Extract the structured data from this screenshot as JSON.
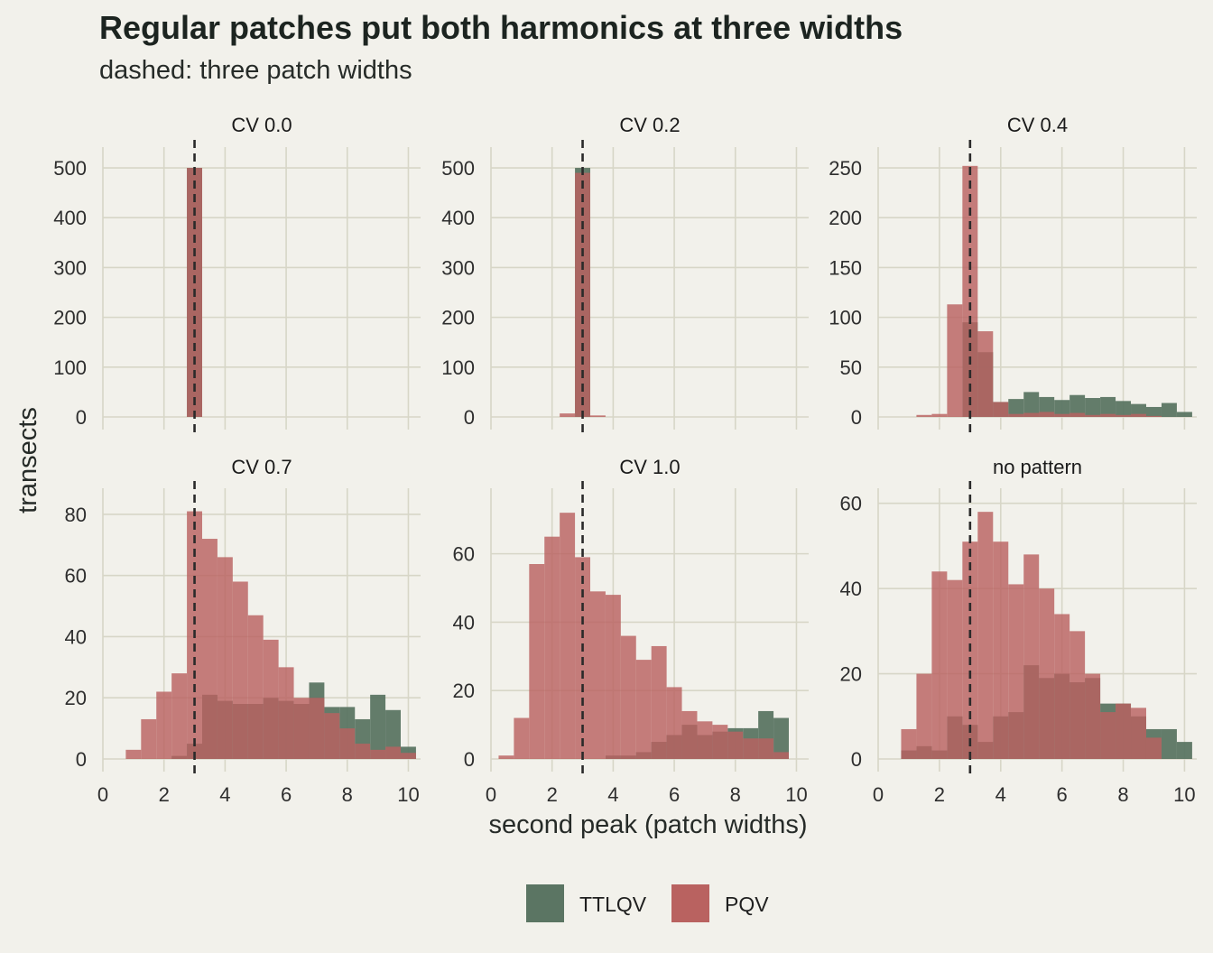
{
  "chart_data": {
    "type": "bar",
    "title": "Regular patches put both harmonics at three widths",
    "subtitle": "dashed: three patch widths",
    "xlabel": "second peak (patch widths)",
    "ylabel": "transects",
    "xlim": [
      0,
      10.4
    ],
    "x_ticks": [
      0,
      2,
      4,
      6,
      8,
      10
    ],
    "reference_line_x": 3,
    "bin_width": 0.5,
    "bin_starts": [
      0.25,
      0.75,
      1.25,
      1.75,
      2.25,
      2.75,
      3.25,
      3.75,
      4.25,
      4.75,
      5.25,
      5.75,
      6.25,
      6.75,
      7.25,
      7.75,
      8.25,
      8.75,
      9.25,
      9.75
    ],
    "legend": [
      "TTLQV",
      "PQV"
    ],
    "colors": {
      "TTLQV": "#5b7563",
      "PQV": "#b96260",
      "reference": "#2a2a2a",
      "grid": "#d7d6c7",
      "background": "#f2f1eb"
    },
    "panels": [
      {
        "label": "CV 0.0",
        "ylim": [
          0,
          520
        ],
        "y_ticks": [
          0,
          100,
          200,
          300,
          400,
          500
        ],
        "series": [
          {
            "name": "TTLQV",
            "values": [
              0,
              0,
              0,
              0,
              0,
              500,
              0,
              0,
              0,
              0,
              0,
              0,
              0,
              0,
              0,
              0,
              0,
              0,
              0,
              0
            ]
          },
          {
            "name": "PQV",
            "values": [
              0,
              0,
              0,
              0,
              0,
              500,
              0,
              0,
              0,
              0,
              0,
              0,
              0,
              0,
              0,
              0,
              0,
              0,
              0,
              0
            ]
          }
        ]
      },
      {
        "label": "CV 0.2",
        "ylim": [
          0,
          520
        ],
        "y_ticks": [
          0,
          100,
          200,
          300,
          400,
          500
        ],
        "series": [
          {
            "name": "TTLQV",
            "values": [
              0,
              0,
              0,
              0,
              0,
              500,
              0,
              0,
              0,
              0,
              0,
              0,
              0,
              0,
              0,
              0,
              0,
              0,
              0,
              0
            ]
          },
          {
            "name": "PQV",
            "values": [
              0,
              0,
              0,
              0,
              7,
              490,
              3,
              0,
              0,
              0,
              0,
              0,
              0,
              0,
              0,
              0,
              0,
              0,
              0,
              0
            ]
          }
        ]
      },
      {
        "label": "CV 0.4",
        "ylim": [
          0,
          260
        ],
        "y_ticks": [
          0,
          50,
          100,
          150,
          200,
          250
        ],
        "series": [
          {
            "name": "TTLQV",
            "values": [
              0,
              0,
              0,
              0,
              0,
              95,
              65,
              15,
              18,
              25,
              20,
              17,
              22,
              19,
              20,
              16,
              13,
              10,
              14,
              5
            ]
          },
          {
            "name": "PQV",
            "values": [
              0,
              0,
              2,
              3,
              113,
              252,
              86,
              15,
              3,
              4,
              5,
              3,
              4,
              2,
              3,
              2,
              3,
              1,
              0,
              0
            ]
          }
        ]
      },
      {
        "label": "CV 0.7",
        "ylim": [
          0,
          85
        ],
        "y_ticks": [
          0,
          20,
          40,
          60,
          80
        ],
        "series": [
          {
            "name": "TTLQV",
            "values": [
              0,
              0,
              0,
              0,
              1,
              5,
              21,
              19,
              18,
              18,
              20,
              19,
              18,
              25,
              17,
              17,
              13,
              21,
              16,
              4
            ]
          },
          {
            "name": "PQV",
            "values": [
              0,
              3,
              13,
              22,
              28,
              81,
              72,
              66,
              58,
              47,
              39,
              30,
              20,
              20,
              15,
              10,
              5,
              3,
              4,
              2
            ]
          }
        ]
      },
      {
        "label": "CV 1.0",
        "ylim": [
          0,
          76
        ],
        "y_ticks": [
          0,
          20,
          40,
          60
        ],
        "series": [
          {
            "name": "TTLQV",
            "values": [
              0,
              0,
              0,
              0,
              0,
              0,
              0,
              1,
              1,
              2,
              5,
              7,
              10,
              7,
              8,
              9,
              9,
              14,
              12,
              0
            ]
          },
          {
            "name": "PQV",
            "values": [
              1,
              12,
              57,
              65,
              72,
              59,
              49,
              48,
              36,
              29,
              33,
              21,
              14,
              11,
              10,
              8,
              6,
              6,
              2,
              0
            ]
          }
        ]
      },
      {
        "label": "no pattern",
        "ylim": [
          0,
          61
        ],
        "y_ticks": [
          0,
          20,
          40,
          60
        ],
        "series": [
          {
            "name": "TTLQV",
            "values": [
              0,
              2,
              3,
              2,
              10,
              8,
              4,
              10,
              11,
              22,
              19,
              20,
              18,
              19,
              13,
              13,
              10,
              7,
              7,
              4
            ]
          },
          {
            "name": "PQV",
            "values": [
              0,
              7,
              20,
              44,
              42,
              51,
              58,
              51,
              41,
              48,
              40,
              34,
              30,
              20,
              11,
              13,
              12,
              5,
              0,
              0
            ]
          }
        ]
      }
    ]
  }
}
